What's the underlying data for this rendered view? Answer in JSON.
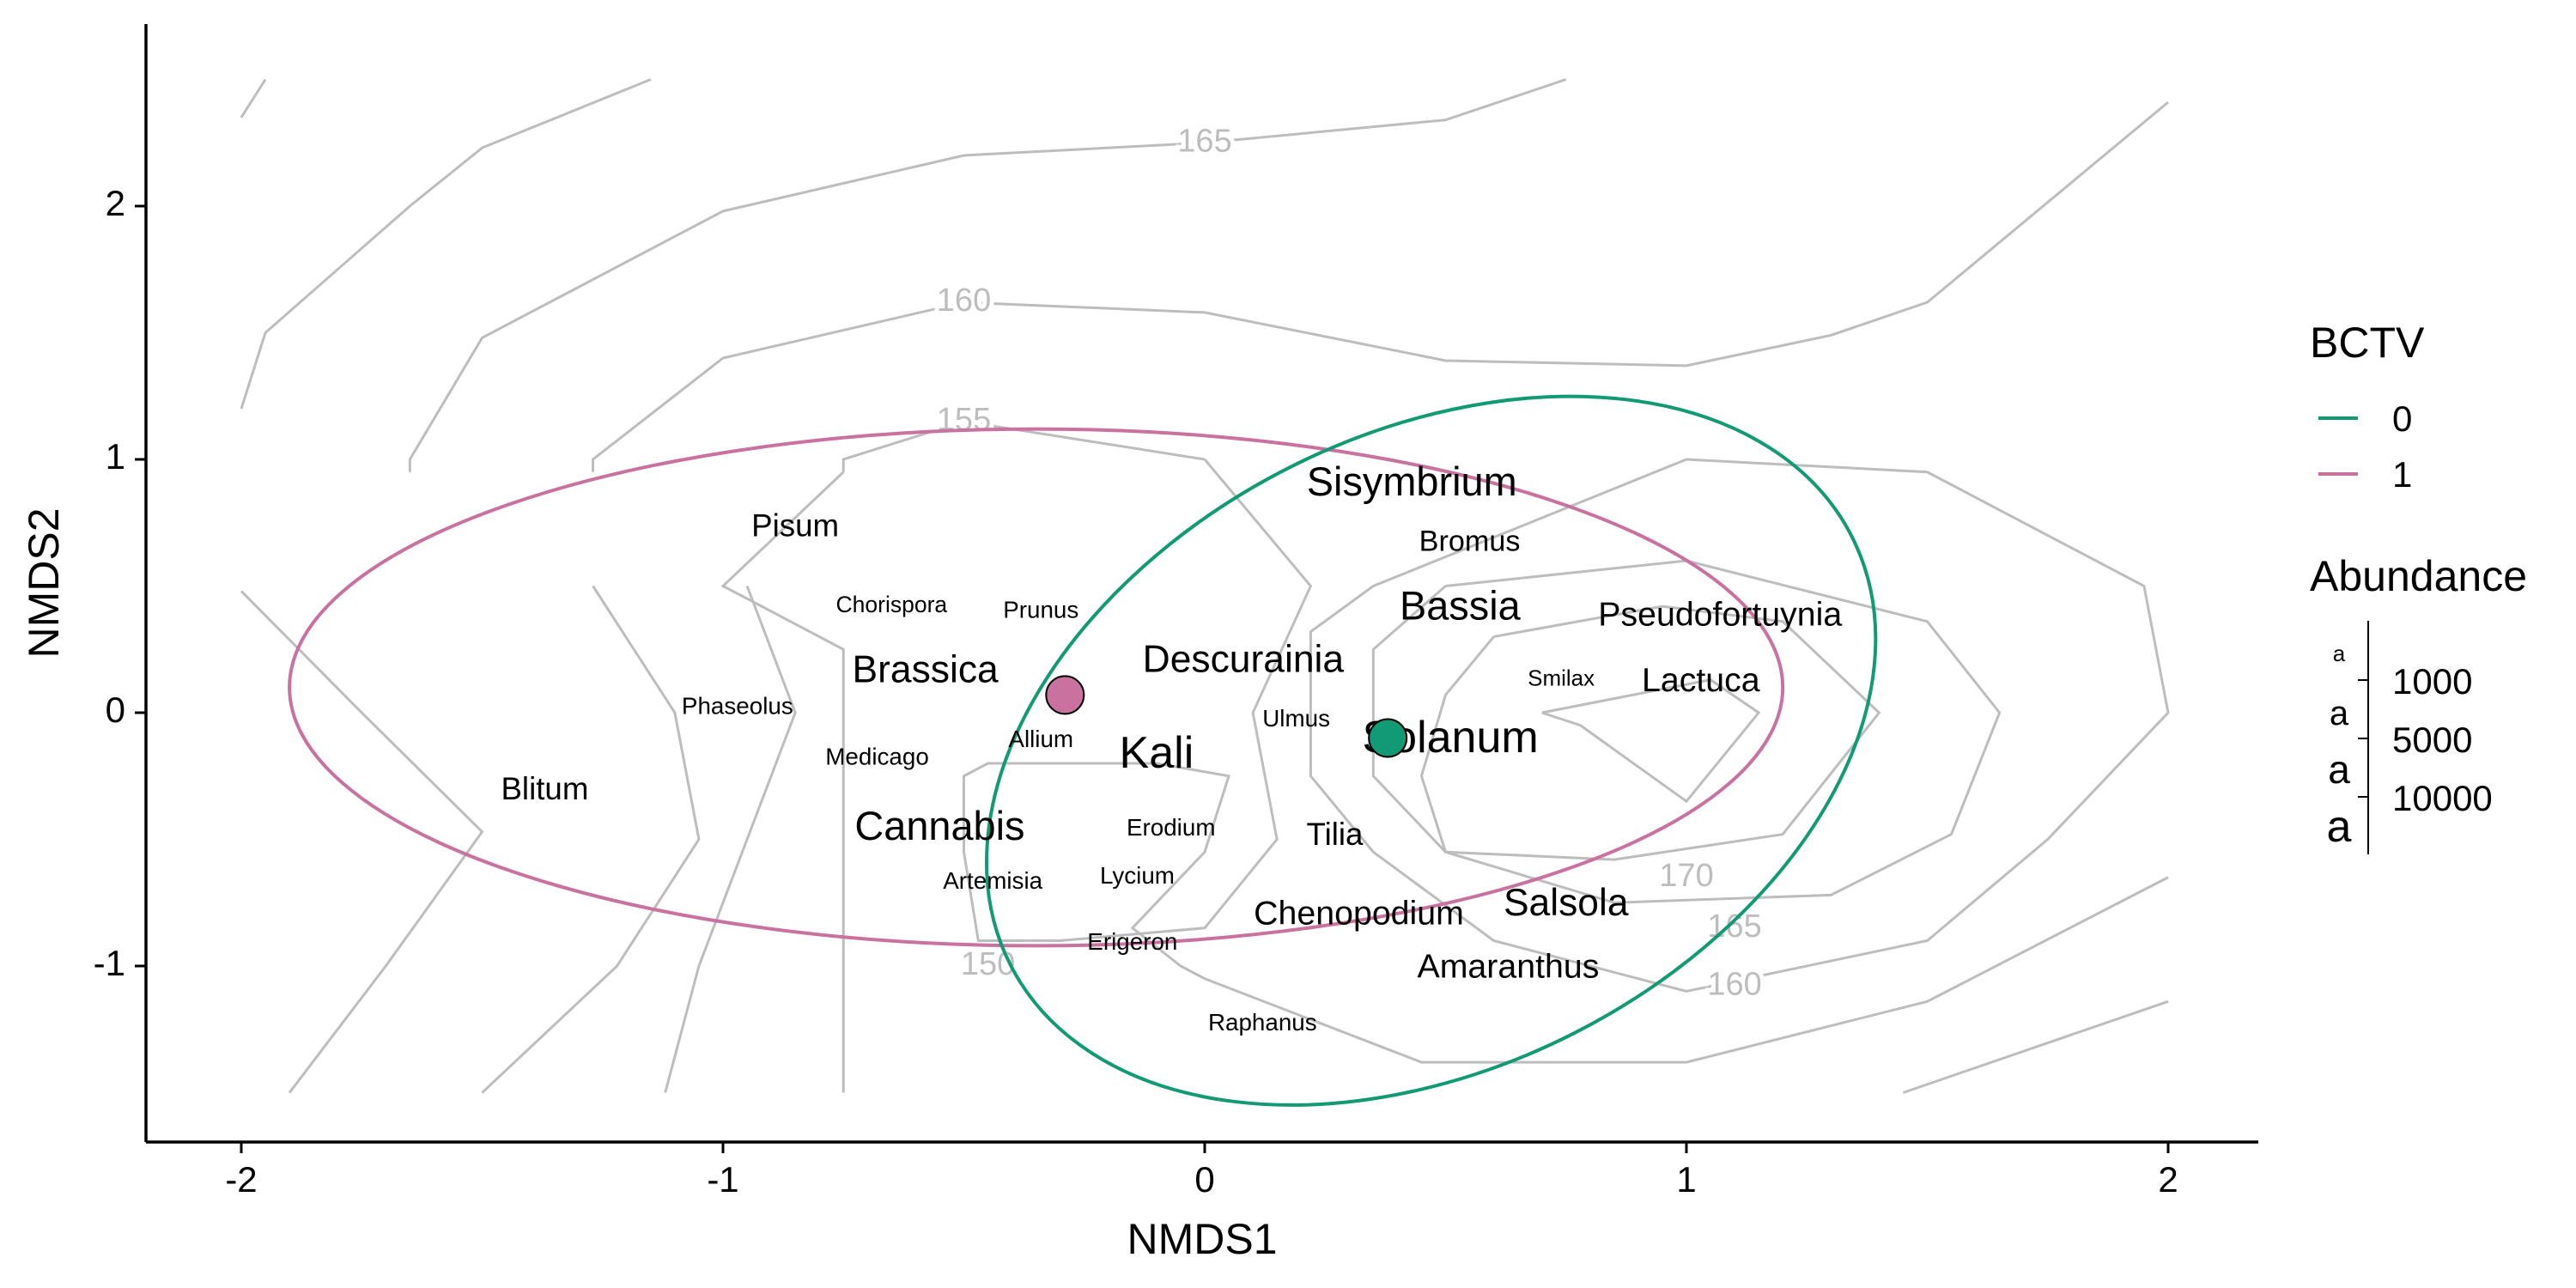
{
  "chart_data": {
    "type": "scatter",
    "title": "",
    "xlabel": "NMDS1",
    "ylabel": "NMDS2",
    "xlim": [
      -2.2,
      2.2
    ],
    "ylim": [
      -1.7,
      2.7
    ],
    "xticks": [
      "-2",
      "-1",
      "0",
      "1",
      "2"
    ],
    "yticks": [
      "-1",
      "0",
      "1",
      "2"
    ],
    "grid": false,
    "colors": {
      "0": "#119a73",
      "1": "#c9719f",
      "contour": "#bdbdbd",
      "axis": "#000000"
    },
    "contour_labels": [
      {
        "text": "165",
        "x": 0.0,
        "y": 2.25
      },
      {
        "text": "160",
        "x": -0.5,
        "y": 1.62
      },
      {
        "text": "155",
        "x": -0.5,
        "y": 1.15
      },
      {
        "text": "150",
        "x": -0.45,
        "y": -1.0
      },
      {
        "text": "170",
        "x": 1.0,
        "y": -0.65
      },
      {
        "text": "165",
        "x": 1.1,
        "y": -0.85
      },
      {
        "text": "160",
        "x": 1.1,
        "y": -1.08
      }
    ],
    "contours": [
      [
        [
          -2.0,
          2.35
        ],
        [
          -1.95,
          2.5
        ]
      ],
      [
        [
          -2.0,
          1.2
        ],
        [
          -1.95,
          1.5
        ],
        [
          -1.65,
          2.0
        ],
        [
          -1.5,
          2.23
        ],
        [
          -1.15,
          2.5
        ]
      ],
      [
        [
          -1.65,
          0.95
        ],
        [
          -1.65,
          1.0
        ],
        [
          -1.5,
          1.48
        ],
        [
          -1.0,
          1.98
        ],
        [
          -0.5,
          2.2
        ],
        [
          0.0,
          2.25
        ],
        [
          0.5,
          2.34
        ],
        [
          0.75,
          2.5
        ]
      ],
      [
        [
          -1.27,
          0.95
        ],
        [
          -1.27,
          1.0
        ],
        [
          -1.0,
          1.4
        ],
        [
          -0.5,
          1.62
        ],
        [
          0.0,
          1.58
        ],
        [
          0.5,
          1.39
        ],
        [
          1.0,
          1.37
        ],
        [
          1.3,
          1.49
        ],
        [
          1.5,
          1.62
        ],
        [
          2.0,
          2.41
        ]
      ],
      [
        [
          -0.75,
          0.95
        ],
        [
          -0.75,
          1.0
        ],
        [
          -0.5,
          1.15
        ],
        [
          0.0,
          1.0
        ]
      ],
      [
        [
          -2.0,
          0.48
        ],
        [
          -1.75,
          0.0
        ],
        [
          -1.5,
          -0.47
        ],
        [
          -1.7,
          -1.0
        ],
        [
          -1.9,
          -1.5
        ]
      ],
      [
        [
          -1.27,
          0.5
        ],
        [
          -1.1,
          0.0
        ],
        [
          -1.05,
          -0.5
        ],
        [
          -1.22,
          -1.0
        ],
        [
          -1.5,
          -1.5
        ]
      ],
      [
        [
          -0.95,
          0.5
        ],
        [
          -0.85,
          0.0
        ],
        [
          -0.95,
          -0.5
        ],
        [
          -1.05,
          -1.0
        ],
        [
          -1.12,
          -1.5
        ]
      ],
      [
        [
          -0.75,
          0.95
        ],
        [
          -1.0,
          0.5
        ],
        [
          -0.75,
          0.25
        ],
        [
          -0.75,
          -1.5
        ]
      ],
      [
        [
          0.0,
          1.0
        ],
        [
          0.22,
          0.5
        ],
        [
          0.1,
          0.0
        ],
        [
          0.15,
          -0.5
        ],
        [
          0.0,
          -0.85
        ],
        [
          -0.3,
          -0.9
        ],
        [
          -0.47,
          -0.9
        ],
        [
          -0.5,
          -0.55
        ],
        [
          -0.5,
          -0.25
        ],
        [
          -0.45,
          -0.2
        ],
        [
          -0.1,
          -0.2
        ],
        [
          0.05,
          -0.25
        ],
        [
          0.0,
          -0.55
        ],
        [
          -0.15,
          -0.85
        ],
        [
          -0.05,
          -1.0
        ],
        [
          0.0,
          -1.05
        ],
        [
          0.45,
          -1.38
        ],
        [
          1.0,
          -1.38
        ],
        [
          1.5,
          -1.14
        ],
        [
          2.0,
          -0.65
        ]
      ],
      [
        [
          0.35,
          0.5
        ],
        [
          0.22,
          0.32
        ],
        [
          0.22,
          -0.25
        ],
        [
          0.35,
          -0.55
        ],
        [
          0.6,
          -0.9
        ],
        [
          1.0,
          -1.1
        ],
        [
          1.5,
          -0.9
        ],
        [
          1.75,
          -0.5
        ],
        [
          2.0,
          0.0
        ],
        [
          1.95,
          0.5
        ],
        [
          1.5,
          0.95
        ],
        [
          1.0,
          1.0
        ],
        [
          0.35,
          0.5
        ]
      ],
      [
        [
          0.5,
          0.5
        ],
        [
          0.35,
          0.25
        ],
        [
          0.35,
          -0.25
        ],
        [
          0.5,
          -0.55
        ],
        [
          0.85,
          -0.75
        ],
        [
          1.3,
          -0.72
        ],
        [
          1.55,
          -0.48
        ],
        [
          1.65,
          0.0
        ],
        [
          1.5,
          0.36
        ],
        [
          1.0,
          0.6
        ],
        [
          0.5,
          0.5
        ]
      ],
      [
        [
          0.6,
          0.3
        ],
        [
          0.5,
          0.07
        ],
        [
          0.45,
          -0.25
        ],
        [
          0.5,
          -0.55
        ],
        [
          0.85,
          -0.58
        ],
        [
          1.2,
          -0.48
        ],
        [
          1.4,
          0.0
        ],
        [
          1.2,
          0.36
        ],
        [
          0.95,
          0.42
        ],
        [
          0.6,
          0.3
        ]
      ],
      [
        [
          0.7,
          0.0
        ],
        [
          1.05,
          0.13
        ],
        [
          1.15,
          0.0
        ],
        [
          1.0,
          -0.35
        ],
        [
          0.78,
          -0.05
        ],
        [
          0.7,
          0.0
        ]
      ],
      [
        [
          1.45,
          -1.5
        ],
        [
          2.0,
          -1.14
        ]
      ]
    ],
    "ellipses": [
      {
        "group": "1",
        "cx": -0.35,
        "cy": 0.1,
        "rx": 1.55,
        "ry": 1.02,
        "angle_deg": 0
      },
      {
        "group": "0",
        "cx": 0.47,
        "cy": -0.15,
        "rx": 0.98,
        "ry": 1.25,
        "angle_deg": -27
      }
    ],
    "centroids": [
      {
        "group": "1",
        "x": -0.29,
        "y": 0.07
      },
      {
        "group": "0",
        "x": 0.38,
        "y": -0.1
      }
    ],
    "genera": [
      {
        "name": "Sisymbrium",
        "x": 0.43,
        "y": 0.9,
        "abundance": 10000
      },
      {
        "name": "Bromus",
        "x": 0.55,
        "y": 0.67,
        "abundance": 5000
      },
      {
        "name": "Pisum",
        "x": -0.85,
        "y": 0.73,
        "abundance": 6000
      },
      {
        "name": "Bassia",
        "x": 0.53,
        "y": 0.41,
        "abundance": 10000
      },
      {
        "name": "Pseudofortuynia",
        "x": 1.07,
        "y": 0.38,
        "abundance": 7000
      },
      {
        "name": "Chorispora",
        "x": -0.65,
        "y": 0.42,
        "abundance": 2000
      },
      {
        "name": "Prunus",
        "x": -0.34,
        "y": 0.4,
        "abundance": 2500
      },
      {
        "name": "Brassica",
        "x": -0.58,
        "y": 0.16,
        "abundance": 9000
      },
      {
        "name": "Descurainia",
        "x": 0.08,
        "y": 0.2,
        "abundance": 9000
      },
      {
        "name": "Smilax",
        "x": 0.74,
        "y": 0.13,
        "abundance": 1800
      },
      {
        "name": "Lactuca",
        "x": 1.03,
        "y": 0.12,
        "abundance": 7000
      },
      {
        "name": "Phaseolus",
        "x": -0.97,
        "y": 0.02,
        "abundance": 2500
      },
      {
        "name": "Ulmus",
        "x": 0.19,
        "y": -0.03,
        "abundance": 2500
      },
      {
        "name": "Allium",
        "x": -0.34,
        "y": -0.11,
        "abundance": 2500
      },
      {
        "name": "Kali",
        "x": -0.1,
        "y": -0.17,
        "abundance": 12000
      },
      {
        "name": "Solanum",
        "x": 0.51,
        "y": -0.11,
        "abundance": 12000
      },
      {
        "name": "Medicago",
        "x": -0.68,
        "y": -0.18,
        "abundance": 2500
      },
      {
        "name": "Blitum",
        "x": -1.37,
        "y": -0.31,
        "abundance": 6000
      },
      {
        "name": "Cannabis",
        "x": -0.55,
        "y": -0.46,
        "abundance": 10000
      },
      {
        "name": "Erodium",
        "x": -0.07,
        "y": -0.46,
        "abundance": 2500
      },
      {
        "name": "Tilia",
        "x": 0.27,
        "y": -0.49,
        "abundance": 6000
      },
      {
        "name": "Artemisia",
        "x": -0.44,
        "y": -0.67,
        "abundance": 2500
      },
      {
        "name": "Lycium",
        "x": -0.14,
        "y": -0.65,
        "abundance": 2500
      },
      {
        "name": "Chenopodium",
        "x": 0.32,
        "y": -0.8,
        "abundance": 7000
      },
      {
        "name": "Salsola",
        "x": 0.75,
        "y": -0.76,
        "abundance": 9000
      },
      {
        "name": "Erigeron",
        "x": -0.15,
        "y": -0.91,
        "abundance": 2500
      },
      {
        "name": "Amaranthus",
        "x": 0.63,
        "y": -1.01,
        "abundance": 7000
      },
      {
        "name": "Raphanus",
        "x": 0.12,
        "y": -1.23,
        "abundance": 2500
      }
    ],
    "legend": {
      "position": "right",
      "color_title": "BCTV",
      "color_entries": [
        {
          "label": "0",
          "color": "#119a73"
        },
        {
          "label": "1",
          "color": "#c9719f"
        }
      ],
      "size_title": "Abundance",
      "size_key_glyph": "a",
      "size_entries": [
        {
          "label": "1000"
        },
        {
          "label": "5000"
        },
        {
          "label": "10000"
        }
      ]
    }
  }
}
